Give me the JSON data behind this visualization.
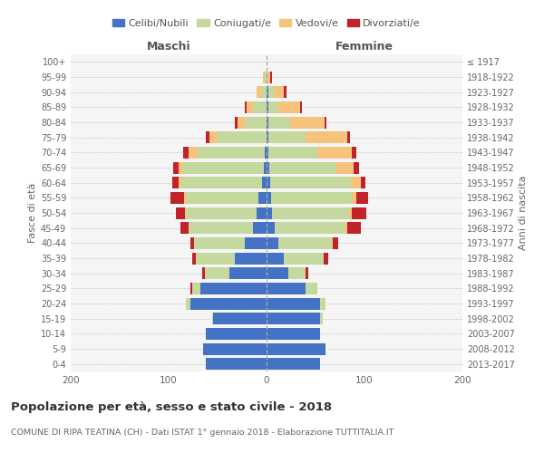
{
  "age_groups": [
    "0-4",
    "5-9",
    "10-14",
    "15-19",
    "20-24",
    "25-29",
    "30-34",
    "35-39",
    "40-44",
    "45-49",
    "50-54",
    "55-59",
    "60-64",
    "65-69",
    "70-74",
    "75-79",
    "80-84",
    "85-89",
    "90-94",
    "95-99",
    "100+"
  ],
  "birth_years": [
    "2013-2017",
    "2008-2012",
    "2003-2007",
    "1998-2002",
    "1993-1997",
    "1988-1992",
    "1983-1987",
    "1978-1982",
    "1973-1977",
    "1968-1972",
    "1963-1967",
    "1958-1962",
    "1953-1957",
    "1948-1952",
    "1943-1947",
    "1938-1942",
    "1933-1937",
    "1928-1932",
    "1923-1927",
    "1918-1922",
    "≤ 1917"
  ],
  "males": {
    "celibe": [
      62,
      65,
      62,
      55,
      78,
      68,
      38,
      32,
      22,
      14,
      10,
      8,
      5,
      3,
      2,
      0,
      0,
      0,
      0,
      0,
      0
    ],
    "coniugato": [
      0,
      0,
      0,
      1,
      4,
      8,
      25,
      40,
      52,
      66,
      72,
      74,
      82,
      82,
      68,
      50,
      22,
      14,
      6,
      2,
      0
    ],
    "vedovo": [
      0,
      0,
      0,
      0,
      0,
      0,
      0,
      0,
      0,
      0,
      1,
      2,
      3,
      5,
      10,
      8,
      8,
      6,
      4,
      2,
      0
    ],
    "divorziato": [
      0,
      0,
      0,
      0,
      0,
      2,
      3,
      4,
      4,
      8,
      10,
      14,
      6,
      5,
      5,
      4,
      2,
      2,
      0,
      0,
      0
    ]
  },
  "females": {
    "nubile": [
      55,
      60,
      55,
      55,
      55,
      40,
      22,
      18,
      12,
      8,
      6,
      5,
      4,
      3,
      2,
      2,
      2,
      2,
      2,
      0,
      0
    ],
    "coniugata": [
      0,
      0,
      0,
      2,
      5,
      12,
      18,
      40,
      55,
      72,
      78,
      82,
      82,
      68,
      50,
      38,
      22,
      10,
      6,
      2,
      0
    ],
    "vedova": [
      0,
      0,
      0,
      0,
      0,
      0,
      0,
      0,
      1,
      2,
      3,
      5,
      10,
      18,
      35,
      42,
      35,
      22,
      10,
      2,
      0
    ],
    "divorziata": [
      0,
      0,
      0,
      0,
      0,
      0,
      3,
      5,
      5,
      14,
      15,
      12,
      5,
      5,
      5,
      3,
      2,
      2,
      2,
      2,
      0
    ]
  },
  "colors": {
    "celibe": "#4472C4",
    "coniugato": "#C5D89D",
    "vedovo": "#F7C27C",
    "divorziato": "#C0232A"
  },
  "legend_labels": [
    "Celibi/Nubili",
    "Coniugati/e",
    "Vedovi/e",
    "Divorziati/e"
  ],
  "title": "Popolazione per età, sesso e stato civile - 2018",
  "subtitle": "COMUNE DI RIPA TEATINA (CH) - Dati ISTAT 1° gennaio 2018 - Elaborazione TUTTITALIA.IT",
  "xlabel_left": "Maschi",
  "xlabel_right": "Femmine",
  "ylabel_left": "Fasce di età",
  "ylabel_right": "Anni di nascita",
  "xlim": 200,
  "bg_color": "#FFFFFF",
  "plot_bg": "#F5F5F5",
  "grid_color": "#CCCCCC"
}
